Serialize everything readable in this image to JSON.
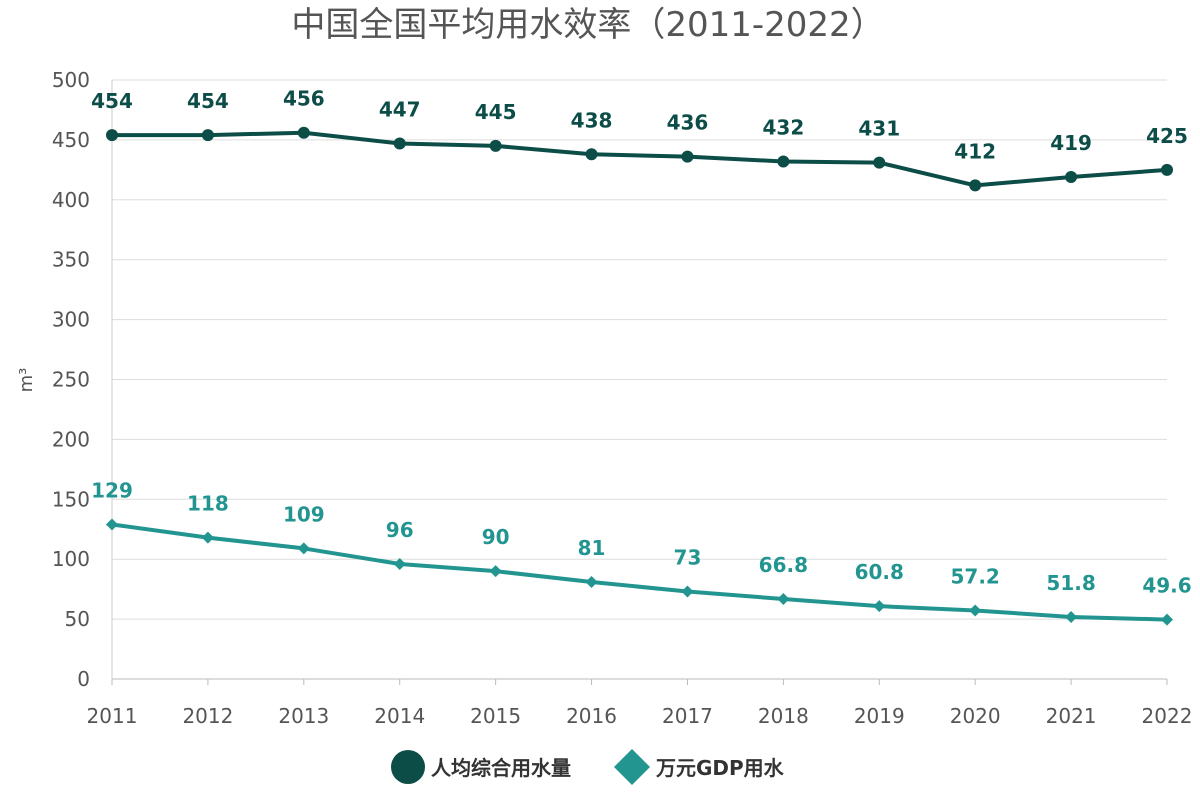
{
  "chart_data": {
    "type": "line",
    "title": "中国全国平均用水效率（2011-2022）",
    "ylabel": "m³",
    "xlabel": "",
    "ylim": [
      0,
      500
    ],
    "yticks": [
      0,
      50,
      100,
      150,
      200,
      250,
      300,
      350,
      400,
      450,
      500
    ],
    "grid": true,
    "legend_position": "bottom",
    "categories": [
      "2011",
      "2012",
      "2013",
      "2014",
      "2015",
      "2016",
      "2017",
      "2018",
      "2019",
      "2020",
      "2021",
      "2022"
    ],
    "series": [
      {
        "name": "人均综合用水量",
        "marker": "circle",
        "color": "#0d4d48",
        "values": [
          454,
          454,
          456,
          447,
          445,
          438,
          436,
          432,
          431,
          412,
          419,
          425
        ],
        "labels": [
          "454",
          "454",
          "456",
          "447",
          "445",
          "438",
          "436",
          "432",
          "431",
          "412",
          "419",
          "425"
        ]
      },
      {
        "name": "万元GDP用水",
        "marker": "diamond",
        "color": "#239590",
        "values": [
          129,
          118,
          109,
          96,
          90,
          81,
          73,
          66.8,
          60.8,
          57.2,
          51.8,
          49.6
        ],
        "labels": [
          "129",
          "118",
          "109",
          "96",
          "90",
          "81",
          "73",
          "66.8",
          "60.8",
          "57.2",
          "51.8",
          "49.6"
        ]
      }
    ]
  }
}
